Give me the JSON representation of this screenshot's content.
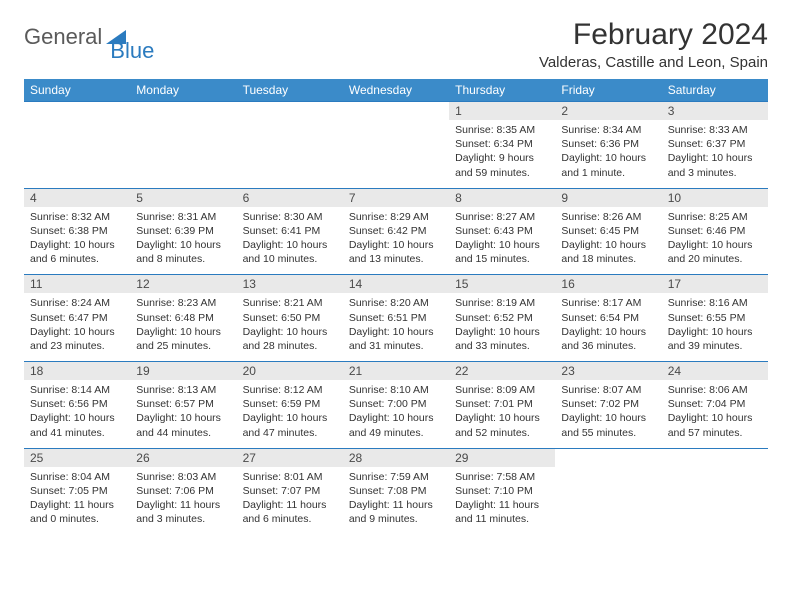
{
  "brand": {
    "word1": "General",
    "word2": "Blue"
  },
  "title": "February 2024",
  "location": "Valderas, Castille and Leon, Spain",
  "colors": {
    "header_bg": "#3b8bc9",
    "header_text": "#ffffff",
    "daynum_bg": "#e9e9e9",
    "daynum_border": "#2b7bbf",
    "body_text": "#333333",
    "logo_dark": "#5a5a5a",
    "logo_blue": "#2b7bbf",
    "page_bg": "#ffffff"
  },
  "weekdays": [
    "Sunday",
    "Monday",
    "Tuesday",
    "Wednesday",
    "Thursday",
    "Friday",
    "Saturday"
  ],
  "lead_blanks": 4,
  "days": [
    {
      "n": "1",
      "sr": "8:35 AM",
      "ss": "6:34 PM",
      "dl": "9 hours and 59 minutes."
    },
    {
      "n": "2",
      "sr": "8:34 AM",
      "ss": "6:36 PM",
      "dl": "10 hours and 1 minute."
    },
    {
      "n": "3",
      "sr": "8:33 AM",
      "ss": "6:37 PM",
      "dl": "10 hours and 3 minutes."
    },
    {
      "n": "4",
      "sr": "8:32 AM",
      "ss": "6:38 PM",
      "dl": "10 hours and 6 minutes."
    },
    {
      "n": "5",
      "sr": "8:31 AM",
      "ss": "6:39 PM",
      "dl": "10 hours and 8 minutes."
    },
    {
      "n": "6",
      "sr": "8:30 AM",
      "ss": "6:41 PM",
      "dl": "10 hours and 10 minutes."
    },
    {
      "n": "7",
      "sr": "8:29 AM",
      "ss": "6:42 PM",
      "dl": "10 hours and 13 minutes."
    },
    {
      "n": "8",
      "sr": "8:27 AM",
      "ss": "6:43 PM",
      "dl": "10 hours and 15 minutes."
    },
    {
      "n": "9",
      "sr": "8:26 AM",
      "ss": "6:45 PM",
      "dl": "10 hours and 18 minutes."
    },
    {
      "n": "10",
      "sr": "8:25 AM",
      "ss": "6:46 PM",
      "dl": "10 hours and 20 minutes."
    },
    {
      "n": "11",
      "sr": "8:24 AM",
      "ss": "6:47 PM",
      "dl": "10 hours and 23 minutes."
    },
    {
      "n": "12",
      "sr": "8:23 AM",
      "ss": "6:48 PM",
      "dl": "10 hours and 25 minutes."
    },
    {
      "n": "13",
      "sr": "8:21 AM",
      "ss": "6:50 PM",
      "dl": "10 hours and 28 minutes."
    },
    {
      "n": "14",
      "sr": "8:20 AM",
      "ss": "6:51 PM",
      "dl": "10 hours and 31 minutes."
    },
    {
      "n": "15",
      "sr": "8:19 AM",
      "ss": "6:52 PM",
      "dl": "10 hours and 33 minutes."
    },
    {
      "n": "16",
      "sr": "8:17 AM",
      "ss": "6:54 PM",
      "dl": "10 hours and 36 minutes."
    },
    {
      "n": "17",
      "sr": "8:16 AM",
      "ss": "6:55 PM",
      "dl": "10 hours and 39 minutes."
    },
    {
      "n": "18",
      "sr": "8:14 AM",
      "ss": "6:56 PM",
      "dl": "10 hours and 41 minutes."
    },
    {
      "n": "19",
      "sr": "8:13 AM",
      "ss": "6:57 PM",
      "dl": "10 hours and 44 minutes."
    },
    {
      "n": "20",
      "sr": "8:12 AM",
      "ss": "6:59 PM",
      "dl": "10 hours and 47 minutes."
    },
    {
      "n": "21",
      "sr": "8:10 AM",
      "ss": "7:00 PM",
      "dl": "10 hours and 49 minutes."
    },
    {
      "n": "22",
      "sr": "8:09 AM",
      "ss": "7:01 PM",
      "dl": "10 hours and 52 minutes."
    },
    {
      "n": "23",
      "sr": "8:07 AM",
      "ss": "7:02 PM",
      "dl": "10 hours and 55 minutes."
    },
    {
      "n": "24",
      "sr": "8:06 AM",
      "ss": "7:04 PM",
      "dl": "10 hours and 57 minutes."
    },
    {
      "n": "25",
      "sr": "8:04 AM",
      "ss": "7:05 PM",
      "dl": "11 hours and 0 minutes."
    },
    {
      "n": "26",
      "sr": "8:03 AM",
      "ss": "7:06 PM",
      "dl": "11 hours and 3 minutes."
    },
    {
      "n": "27",
      "sr": "8:01 AM",
      "ss": "7:07 PM",
      "dl": "11 hours and 6 minutes."
    },
    {
      "n": "28",
      "sr": "7:59 AM",
      "ss": "7:08 PM",
      "dl": "11 hours and 9 minutes."
    },
    {
      "n": "29",
      "sr": "7:58 AM",
      "ss": "7:10 PM",
      "dl": "11 hours and 11 minutes."
    }
  ],
  "labels": {
    "sunrise": "Sunrise:",
    "sunset": "Sunset:",
    "daylight": "Daylight:"
  }
}
